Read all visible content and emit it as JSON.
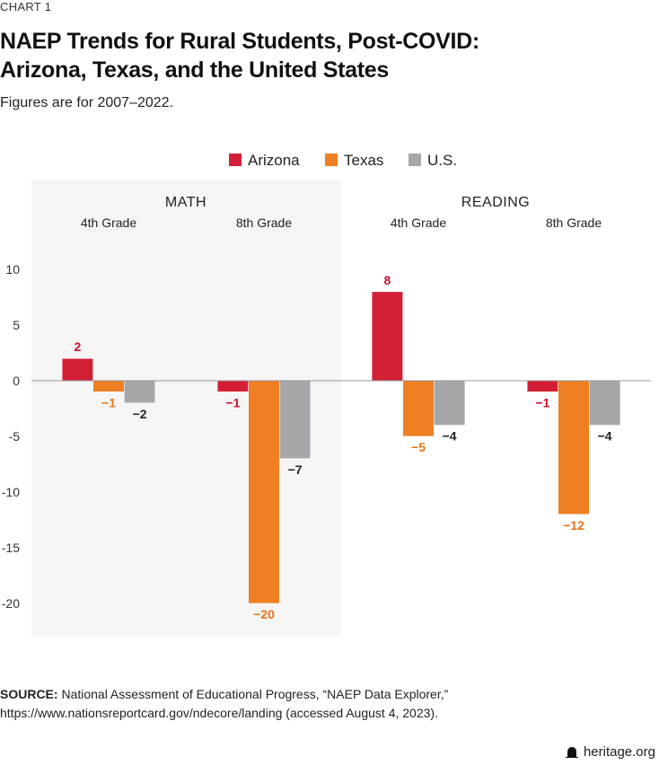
{
  "kicker": "CHART 1",
  "title_line1": "NAEP Trends for Rural Students, Post-COVID:",
  "title_line2": "Arizona, Texas, and the United States",
  "subtitle": "Figures are for 2007–2022.",
  "source_label": "SOURCE:",
  "source_text": " National Assessment of Educational Progress, “NAEP Data Explorer,” https://www.nationsreportcard.gov/ndecore/landing (accessed August 4, 2023).",
  "brand": "heritage.org",
  "brand_icon": "bell-icon",
  "chart_data": {
    "type": "bar",
    "panels": [
      {
        "label": "MATH",
        "shaded": true,
        "categories": [
          "4th Grade",
          "8th Grade"
        ]
      },
      {
        "label": "READING",
        "shaded": false,
        "categories": [
          "4th Grade",
          "8th Grade"
        ]
      }
    ],
    "categories": [
      "4th Grade",
      "8th Grade",
      "4th Grade",
      "8th Grade"
    ],
    "series": [
      {
        "name": "Arizona",
        "color": "#d21f35",
        "label_color": "#c8102e",
        "values": [
          2,
          -1,
          8,
          -1
        ]
      },
      {
        "name": "Texas",
        "color": "#ee7f22",
        "label_color": "#e8731a",
        "values": [
          -1,
          -20,
          -5,
          -12
        ]
      },
      {
        "name": "U.S.",
        "color": "#a6a7aa",
        "label_color": "#222222",
        "values": [
          -2,
          -7,
          -4,
          -4
        ]
      }
    ],
    "yticks": [
      10,
      5,
      0,
      -5,
      -10,
      -15,
      -20
    ],
    "ylim": [
      -23,
      10
    ],
    "legend_position": "top-center",
    "grid": false
  }
}
